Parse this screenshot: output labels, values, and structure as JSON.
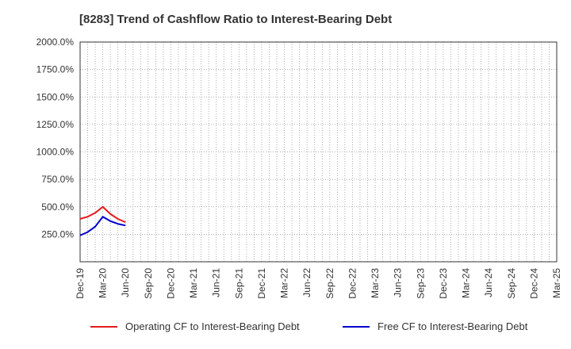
{
  "chart_data": {
    "type": "line",
    "title": "[8283]  Trend of Cashflow Ratio to Interest-Bearing Debt",
    "xlabel": "",
    "ylabel": "",
    "categories": [
      "Dec-19",
      "Mar-20",
      "Jun-20",
      "Sep-20",
      "Dec-20",
      "Mar-21",
      "Jun-21",
      "Sep-21",
      "Dec-21",
      "Mar-22",
      "Jun-22",
      "Sep-22",
      "Dec-22",
      "Mar-23",
      "Jun-23",
      "Sep-23",
      "Dec-23",
      "Mar-24",
      "Jun-24",
      "Sep-24",
      "Dec-24",
      "Mar-25"
    ],
    "y_ticks": [
      "2000.0%",
      "1750.0%",
      "1500.0%",
      "1250.0%",
      "1000.0%",
      "750.0%",
      "500.0%",
      "250.0%"
    ],
    "y_tick_values": [
      2000,
      1750,
      1500,
      1250,
      1000,
      750,
      500,
      250
    ],
    "ylim": [
      0,
      2000
    ],
    "grid": true,
    "legend_position": "bottom",
    "series": [
      {
        "name": "Operating CF to Interest-Bearing Debt",
        "color": "#e31a1c",
        "points": [
          {
            "x": "Dec-19",
            "y": 390
          },
          {
            "x": "Jan-20",
            "y": 410
          },
          {
            "x": "Feb-20",
            "y": 445
          },
          {
            "x": "Mar-20",
            "y": 500
          },
          {
            "x": "Apr-20",
            "y": 435
          },
          {
            "x": "May-20",
            "y": 390
          },
          {
            "x": "Jun-20",
            "y": 360
          }
        ]
      },
      {
        "name": "Free CF to Interest-Bearing Debt",
        "color": "#0000cc",
        "points": [
          {
            "x": "Dec-19",
            "y": 240
          },
          {
            "x": "Jan-20",
            "y": 270
          },
          {
            "x": "Feb-20",
            "y": 320
          },
          {
            "x": "Mar-20",
            "y": 410
          },
          {
            "x": "Apr-20",
            "y": 370
          },
          {
            "x": "May-20",
            "y": 345
          },
          {
            "x": "Jun-20",
            "y": 330
          }
        ]
      }
    ]
  }
}
